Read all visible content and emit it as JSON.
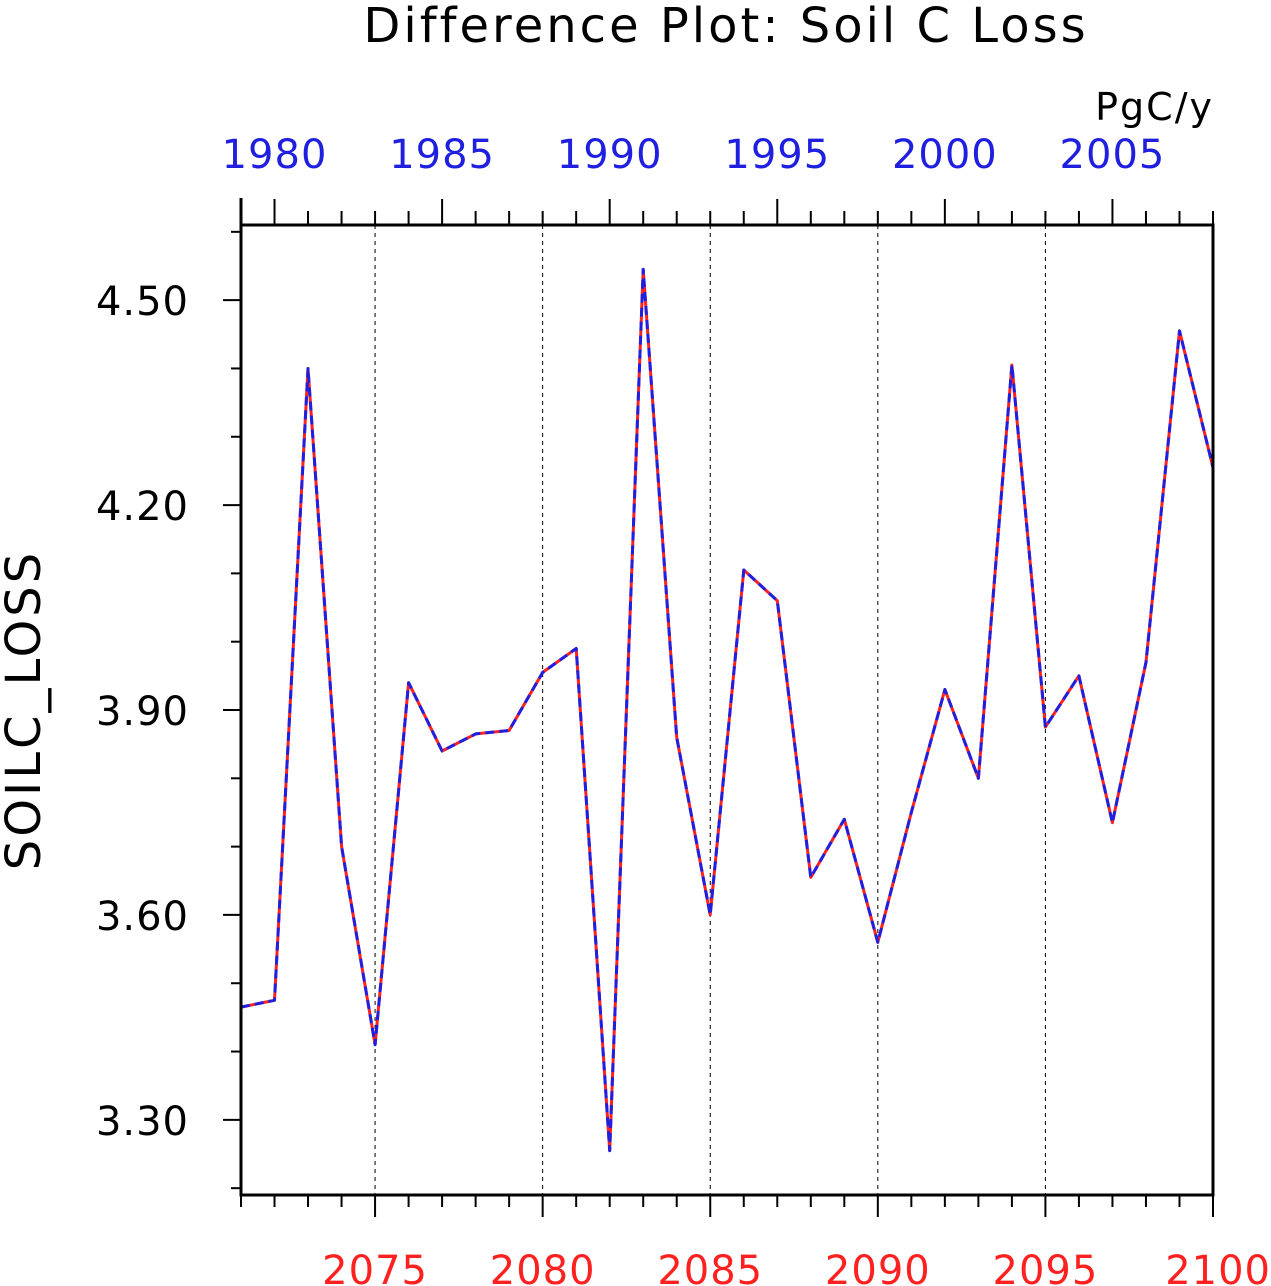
{
  "chart_data": {
    "type": "line",
    "title": "Difference Plot: Soil C Loss",
    "units": "PgC/y",
    "ylabel": "SOILC_LOSS",
    "xlabel": "",
    "ylim": [
      3.19,
      4.61
    ],
    "yticks": [
      3.3,
      3.6,
      3.9,
      4.2,
      4.5
    ],
    "ytick_labels": [
      "3.30",
      "3.60",
      "3.90",
      "4.20",
      "4.50"
    ],
    "bottom_axis": {
      "color": "#ff2020",
      "xlim": [
        2071,
        2100
      ],
      "ticks": [
        2075,
        2080,
        2085,
        2090,
        2095,
        2100
      ],
      "tick_labels": [
        "2075",
        "2080",
        "2085",
        "2090",
        "2095",
        "2100"
      ]
    },
    "top_axis": {
      "color": "#1f1fe0",
      "xlim": [
        1979,
        2008
      ],
      "ticks": [
        1980,
        1985,
        1990,
        1995,
        2000,
        2005
      ],
      "tick_labels": [
        "1980",
        "1985",
        "1990",
        "1995",
        "2000",
        "2005"
      ]
    },
    "grid": "vertical dashed at major bottom ticks",
    "x": [
      2071,
      2072,
      2073,
      2074,
      2075,
      2076,
      2077,
      2078,
      2079,
      2080,
      2081,
      2082,
      2083,
      2084,
      2085,
      2086,
      2087,
      2088,
      2089,
      2090,
      2091,
      2092,
      2093,
      2094,
      2095,
      2096,
      2097,
      2098,
      2099,
      2100
    ],
    "series": [
      {
        "name": "",
        "color": "#ff2020",
        "style": "solid",
        "values": [
          3.465,
          3.475,
          4.4,
          3.7,
          3.41,
          3.94,
          3.84,
          3.865,
          3.87,
          3.955,
          3.99,
          3.255,
          4.545,
          3.86,
          3.6,
          4.105,
          4.06,
          3.655,
          3.74,
          3.56,
          3.75,
          3.93,
          3.8,
          4.405,
          3.875,
          3.95,
          3.735,
          3.97,
          4.455,
          4.255
        ]
      },
      {
        "name": "",
        "color": "#1f1fe0",
        "style": "dashed",
        "values": [
          3.465,
          3.475,
          4.4,
          3.7,
          3.41,
          3.94,
          3.84,
          3.865,
          3.87,
          3.955,
          3.99,
          3.255,
          4.545,
          3.86,
          3.6,
          4.105,
          4.06,
          3.655,
          3.74,
          3.56,
          3.75,
          3.93,
          3.8,
          4.405,
          3.875,
          3.95,
          3.735,
          3.97,
          4.455,
          4.255
        ]
      }
    ]
  }
}
